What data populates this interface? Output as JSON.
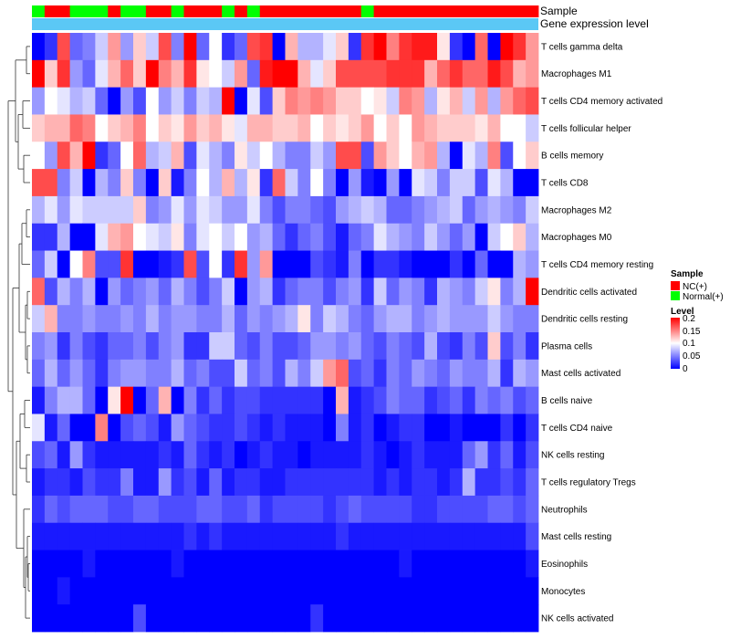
{
  "chart_data": {
    "type": "heatmap",
    "title": "",
    "annotation_rows": [
      "Sample",
      "Gene expression level"
    ],
    "sample_annotation": [
      "Normal(+)",
      "NC(+)",
      "NC(+)",
      "Normal(+)",
      "Normal(+)",
      "Normal(+)",
      "NC(+)",
      "Normal(+)",
      "Normal(+)",
      "NC(+)",
      "NC(+)",
      "Normal(+)",
      "NC(+)",
      "NC(+)",
      "NC(+)",
      "Normal(+)",
      "NC(+)",
      "Normal(+)",
      "NC(+)",
      "NC(+)",
      "NC(+)",
      "NC(+)",
      "NC(+)",
      "NC(+)",
      "NC(+)",
      "NC(+)",
      "Normal(+)",
      "NC(+)",
      "NC(+)",
      "NC(+)",
      "NC(+)",
      "NC(+)",
      "NC(+)",
      "NC(+)",
      "NC(+)",
      "NC(+)",
      "NC(+)",
      "NC(+)",
      "NC(+)",
      "NC(+)"
    ],
    "gene_expression_color": "#5bc8f5",
    "rows": [
      "T cells gamma delta",
      "Macrophages M1",
      "T cells CD4 memory activated",
      "T cells follicular helper",
      "B cells memory",
      "T cells CD8",
      "Macrophages M2",
      "Macrophages M0",
      "T cells CD4 memory resting",
      "Dendritic cells activated",
      "Dendritic cells resting",
      "Plasma cells",
      "Mast cells activated",
      "B cells naive",
      "T cells CD4 naive",
      "NK cells resting",
      "T cells regulatory  Tregs",
      "Neutrophils",
      "Mast cells resting",
      "Eosinophils",
      "Monocytes",
      "NK cells activated"
    ],
    "values": [
      [
        0.0,
        0.02,
        0.17,
        0.04,
        0.05,
        0.08,
        0.14,
        0.06,
        0.12,
        0.08,
        0.17,
        0.05,
        0.2,
        0.04,
        0.1,
        0.02,
        0.04,
        0.17,
        0.18,
        0.0,
        0.13,
        0.07,
        0.07,
        0.09,
        0.12,
        0.02,
        0.18,
        0.2,
        0.15,
        0.18,
        0.19,
        0.19,
        0.11,
        0.02,
        0.0,
        0.16,
        0.0,
        0.2,
        0.18,
        0.14
      ],
      [
        0.2,
        0.12,
        0.18,
        0.06,
        0.04,
        0.09,
        0.13,
        0.16,
        0.12,
        0.2,
        0.15,
        0.13,
        0.18,
        0.11,
        0.1,
        0.08,
        0.14,
        0.04,
        0.19,
        0.2,
        0.2,
        0.13,
        0.09,
        0.12,
        0.17,
        0.17,
        0.17,
        0.17,
        0.18,
        0.18,
        0.18,
        0.13,
        0.16,
        0.18,
        0.16,
        0.16,
        0.19,
        0.17,
        0.13,
        0.14
      ],
      [
        0.06,
        0.1,
        0.09,
        0.07,
        0.08,
        0.04,
        0.0,
        0.06,
        0.03,
        0.1,
        0.06,
        0.08,
        0.05,
        0.08,
        0.07,
        0.2,
        0.0,
        0.09,
        0.03,
        0.12,
        0.15,
        0.14,
        0.15,
        0.14,
        0.12,
        0.12,
        0.1,
        0.11,
        0.08,
        0.15,
        0.14,
        0.07,
        0.11,
        0.13,
        0.08,
        0.14,
        0.07,
        0.14,
        0.16,
        0.17
      ],
      [
        0.12,
        0.13,
        0.13,
        0.16,
        0.15,
        0.1,
        0.12,
        0.13,
        0.15,
        0.1,
        0.12,
        0.11,
        0.14,
        0.12,
        0.13,
        0.11,
        0.09,
        0.13,
        0.13,
        0.12,
        0.12,
        0.13,
        0.1,
        0.12,
        0.11,
        0.12,
        0.14,
        0.1,
        0.12,
        0.1,
        0.14,
        0.13,
        0.12,
        0.12,
        0.12,
        0.11,
        0.13,
        0.1,
        0.1,
        0.08
      ],
      [
        0.1,
        0.06,
        0.17,
        0.13,
        0.2,
        0.02,
        0.04,
        0.1,
        0.16,
        0.07,
        0.08,
        0.13,
        0.03,
        0.09,
        0.07,
        0.05,
        0.11,
        0.08,
        0.1,
        0.07,
        0.05,
        0.05,
        0.08,
        0.06,
        0.17,
        0.17,
        0.03,
        0.14,
        0.12,
        0.1,
        0.13,
        0.14,
        0.07,
        0.0,
        0.09,
        0.07,
        0.15,
        0.03,
        0.1,
        0.12
      ],
      [
        0.17,
        0.17,
        0.05,
        0.08,
        0.0,
        0.07,
        0.05,
        0.12,
        0.05,
        0.0,
        0.12,
        0.01,
        0.05,
        0.1,
        0.07,
        0.13,
        0.07,
        0.11,
        0.02,
        0.16,
        0.08,
        0.05,
        0.1,
        0.05,
        0.0,
        0.06,
        0.01,
        0.0,
        0.06,
        0.0,
        0.09,
        0.08,
        0.05,
        0.08,
        0.08,
        0.03,
        0.09,
        0.07,
        0.0,
        0.0
      ],
      [
        0.07,
        0.09,
        0.06,
        0.09,
        0.08,
        0.08,
        0.08,
        0.08,
        0.12,
        0.05,
        0.06,
        0.09,
        0.06,
        0.09,
        0.08,
        0.06,
        0.06,
        0.09,
        0.05,
        0.03,
        0.05,
        0.05,
        0.04,
        0.03,
        0.06,
        0.07,
        0.08,
        0.07,
        0.04,
        0.04,
        0.05,
        0.06,
        0.07,
        0.08,
        0.04,
        0.06,
        0.07,
        0.06,
        0.05,
        0.08
      ],
      [
        0.02,
        0.02,
        0.07,
        0.0,
        0.0,
        0.09,
        0.13,
        0.14,
        0.1,
        0.09,
        0.08,
        0.11,
        0.05,
        0.09,
        0.1,
        0.08,
        0.1,
        0.06,
        0.07,
        0.04,
        0.02,
        0.04,
        0.05,
        0.03,
        0.01,
        0.04,
        0.05,
        0.09,
        0.07,
        0.06,
        0.05,
        0.08,
        0.06,
        0.04,
        0.06,
        0.0,
        0.08,
        0.1,
        0.12,
        0.07
      ],
      [
        0.04,
        0.08,
        0.0,
        0.1,
        0.15,
        0.03,
        0.03,
        0.18,
        0.0,
        0.0,
        0.01,
        0.02,
        0.17,
        0.03,
        0.1,
        0.02,
        0.18,
        0.06,
        0.14,
        0.0,
        0.0,
        0.0,
        0.03,
        0.02,
        0.01,
        0.05,
        0.0,
        0.02,
        0.02,
        0.01,
        0.0,
        0.0,
        0.0,
        0.02,
        0.0,
        0.04,
        0.0,
        0.0,
        0.07,
        0.06
      ],
      [
        0.16,
        0.03,
        0.07,
        0.05,
        0.07,
        0.0,
        0.06,
        0.04,
        0.05,
        0.06,
        0.04,
        0.07,
        0.05,
        0.03,
        0.05,
        0.08,
        0.0,
        0.06,
        0.07,
        0.02,
        0.04,
        0.05,
        0.05,
        0.03,
        0.05,
        0.06,
        0.02,
        0.08,
        0.04,
        0.06,
        0.05,
        0.02,
        0.07,
        0.06,
        0.05,
        0.08,
        0.11,
        0.05,
        0.07,
        0.2
      ],
      [
        0.08,
        0.13,
        0.05,
        0.05,
        0.06,
        0.05,
        0.05,
        0.06,
        0.05,
        0.07,
        0.05,
        0.06,
        0.06,
        0.05,
        0.05,
        0.07,
        0.04,
        0.06,
        0.05,
        0.06,
        0.07,
        0.11,
        0.05,
        0.08,
        0.07,
        0.05,
        0.04,
        0.06,
        0.07,
        0.07,
        0.05,
        0.06,
        0.07,
        0.06,
        0.06,
        0.06,
        0.08,
        0.06,
        0.05,
        0.05
      ],
      [
        0.05,
        0.06,
        0.02,
        0.05,
        0.03,
        0.02,
        0.04,
        0.04,
        0.05,
        0.03,
        0.05,
        0.06,
        0.02,
        0.02,
        0.08,
        0.08,
        0.04,
        0.03,
        0.05,
        0.03,
        0.03,
        0.04,
        0.06,
        0.06,
        0.05,
        0.06,
        0.04,
        0.03,
        0.05,
        0.04,
        0.03,
        0.07,
        0.03,
        0.02,
        0.05,
        0.03,
        0.12,
        0.03,
        0.05,
        0.02
      ],
      [
        0.04,
        0.07,
        0.04,
        0.06,
        0.04,
        0.02,
        0.05,
        0.06,
        0.06,
        0.05,
        0.05,
        0.07,
        0.04,
        0.05,
        0.03,
        0.03,
        0.08,
        0.04,
        0.05,
        0.03,
        0.07,
        0.05,
        0.08,
        0.14,
        0.16,
        0.03,
        0.04,
        0.02,
        0.05,
        0.04,
        0.06,
        0.05,
        0.04,
        0.06,
        0.05,
        0.05,
        0.07,
        0.02,
        0.07,
        0.06
      ],
      [
        0.01,
        0.05,
        0.07,
        0.07,
        0.04,
        0.0,
        0.11,
        0.2,
        0.0,
        0.04,
        0.13,
        0.0,
        0.05,
        0.02,
        0.04,
        0.02,
        0.03,
        0.03,
        0.02,
        0.02,
        0.02,
        0.02,
        0.02,
        0.0,
        0.13,
        0.01,
        0.02,
        0.03,
        0.05,
        0.04,
        0.04,
        0.02,
        0.03,
        0.04,
        0.02,
        0.05,
        0.04,
        0.05,
        0.03,
        0.04
      ],
      [
        0.09,
        0.01,
        0.04,
        0.0,
        0.0,
        0.15,
        0.0,
        0.03,
        0.04,
        0.03,
        0.01,
        0.06,
        0.04,
        0.03,
        0.02,
        0.02,
        0.03,
        0.02,
        0.01,
        0.02,
        0.01,
        0.01,
        0.01,
        0.0,
        0.05,
        0.01,
        0.02,
        0.0,
        0.01,
        0.02,
        0.02,
        0.0,
        0.0,
        0.01,
        0.0,
        0.0,
        0.0,
        0.02,
        0.0,
        0.02
      ],
      [
        0.03,
        0.04,
        0.01,
        0.06,
        0.02,
        0.01,
        0.01,
        0.01,
        0.01,
        0.01,
        0.02,
        0.01,
        0.04,
        0.02,
        0.01,
        0.02,
        0.0,
        0.01,
        0.02,
        0.01,
        0.01,
        0.0,
        0.01,
        0.01,
        0.01,
        0.01,
        0.02,
        0.01,
        0.0,
        0.01,
        0.02,
        0.01,
        0.01,
        0.01,
        0.04,
        0.06,
        0.02,
        0.04,
        0.01,
        0.03
      ],
      [
        0.01,
        0.02,
        0.02,
        0.01,
        0.03,
        0.02,
        0.02,
        0.05,
        0.01,
        0.01,
        0.06,
        0.02,
        0.03,
        0.01,
        0.04,
        0.01,
        0.02,
        0.02,
        0.01,
        0.01,
        0.02,
        0.02,
        0.02,
        0.02,
        0.02,
        0.02,
        0.02,
        0.01,
        0.02,
        0.01,
        0.02,
        0.02,
        0.01,
        0.02,
        0.07,
        0.02,
        0.02,
        0.03,
        0.02,
        0.04
      ],
      [
        0.02,
        0.04,
        0.03,
        0.04,
        0.04,
        0.04,
        0.03,
        0.03,
        0.04,
        0.04,
        0.03,
        0.03,
        0.03,
        0.04,
        0.04,
        0.03,
        0.03,
        0.04,
        0.02,
        0.03,
        0.03,
        0.03,
        0.03,
        0.02,
        0.03,
        0.04,
        0.03,
        0.03,
        0.03,
        0.03,
        0.02,
        0.02,
        0.03,
        0.03,
        0.03,
        0.03,
        0.04,
        0.04,
        0.03,
        0.04
      ],
      [
        0.01,
        0.01,
        0.01,
        0.01,
        0.01,
        0.01,
        0.01,
        0.01,
        0.01,
        0.01,
        0.01,
        0.01,
        0.02,
        0.01,
        0.02,
        0.01,
        0.01,
        0.01,
        0.01,
        0.01,
        0.01,
        0.01,
        0.01,
        0.01,
        0.02,
        0.01,
        0.01,
        0.01,
        0.01,
        0.01,
        0.01,
        0.01,
        0.01,
        0.01,
        0.01,
        0.01,
        0.01,
        0.01,
        0.01,
        0.03
      ],
      [
        0.0,
        0.0,
        0.0,
        0.0,
        0.01,
        0.0,
        0.0,
        0.0,
        0.0,
        0.0,
        0.0,
        0.01,
        0.0,
        0.0,
        0.0,
        0.0,
        0.0,
        0.0,
        0.0,
        0.0,
        0.0,
        0.0,
        0.0,
        0.0,
        0.0,
        0.0,
        0.0,
        0.0,
        0.0,
        0.01,
        0.0,
        0.0,
        0.0,
        0.0,
        0.0,
        0.0,
        0.0,
        0.0,
        0.0,
        0.01
      ],
      [
        0.0,
        0.0,
        0.01,
        0.0,
        0.0,
        0.0,
        0.0,
        0.0,
        0.0,
        0.0,
        0.0,
        0.0,
        0.0,
        0.0,
        0.0,
        0.0,
        0.0,
        0.0,
        0.0,
        0.0,
        0.0,
        0.0,
        0.0,
        0.0,
        0.0,
        0.0,
        0.0,
        0.0,
        0.0,
        0.0,
        0.0,
        0.0,
        0.0,
        0.0,
        0.0,
        0.0,
        0.0,
        0.0,
        0.0,
        0.0
      ],
      [
        0.0,
        0.0,
        0.0,
        0.0,
        0.0,
        0.0,
        0.0,
        0.0,
        0.03,
        0.0,
        0.0,
        0.0,
        0.0,
        0.0,
        0.0,
        0.0,
        0.0,
        0.0,
        0.0,
        0.0,
        0.0,
        0.0,
        0.02,
        0.0,
        0.0,
        0.0,
        0.0,
        0.0,
        0.0,
        0.0,
        0.0,
        0.0,
        0.0,
        0.0,
        0.0,
        0.0,
        0.0,
        0.0,
        0.0,
        0.0
      ]
    ],
    "color_scale": {
      "min": 0,
      "max": 0.2,
      "low": "#0000ff",
      "mid": "#ffffff",
      "high": "#ff0000",
      "mid_value": 0.1
    },
    "legend": {
      "position": "right",
      "sample_title": "Sample",
      "sample_entries": [
        {
          "label": "NC(+)",
          "color": "#ff0000"
        },
        {
          "label": "Normal(+)",
          "color": "#00ff00"
        }
      ],
      "level_title": "Level",
      "level_ticks": [
        "0.2",
        "0.15",
        "0.1",
        "0.05",
        "0"
      ]
    },
    "dendrogram": {
      "side": "left"
    }
  }
}
